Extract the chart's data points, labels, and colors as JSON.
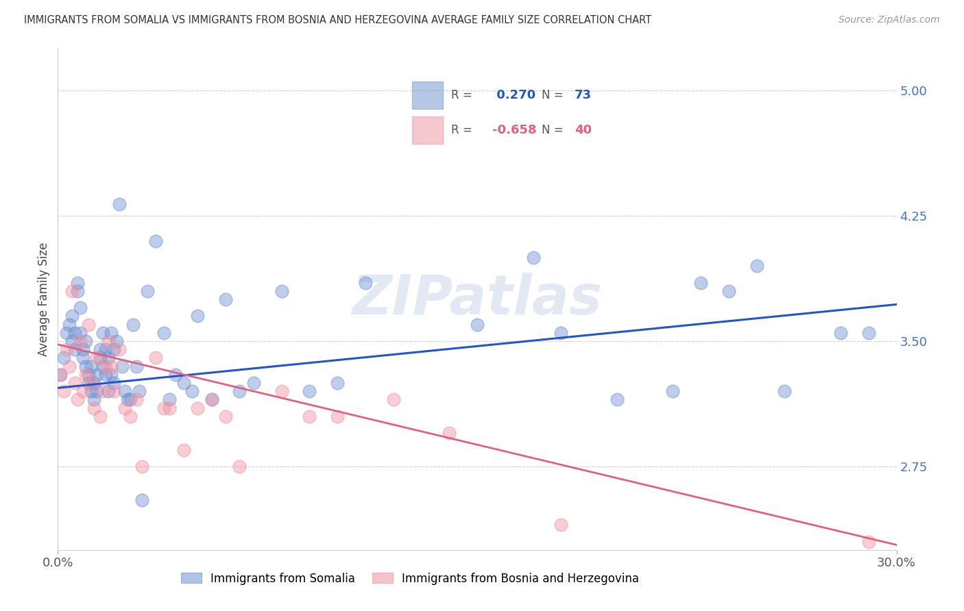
{
  "title": "IMMIGRANTS FROM SOMALIA VS IMMIGRANTS FROM BOSNIA AND HERZEGOVINA AVERAGE FAMILY SIZE CORRELATION CHART",
  "source": "Source: ZipAtlas.com",
  "ylabel": "Average Family Size",
  "yticks": [
    2.75,
    3.5,
    4.25,
    5.0
  ],
  "xlim": [
    0.0,
    0.3
  ],
  "ylim": [
    2.25,
    5.25
  ],
  "y_axis_color": "#4472c4",
  "background_color": "#ffffff",
  "grid_color": "#cccccc",
  "somalia_color": "#7090d0",
  "bosnia_color": "#f090a0",
  "somalia_line_color": "#2255cc",
  "bosnia_line_color": "#e06080",
  "legend_R1": " 0.270",
  "legend_N1": "73",
  "legend_R2": "-0.658",
  "legend_N2": "40",
  "somalia_label": "Immigrants from Somalia",
  "bosnia_label": "Immigrants from Bosnia and Herzegovina",
  "somalia_points_x": [
    0.001,
    0.002,
    0.003,
    0.004,
    0.005,
    0.005,
    0.006,
    0.006,
    0.007,
    0.007,
    0.008,
    0.008,
    0.009,
    0.009,
    0.01,
    0.01,
    0.011,
    0.011,
    0.012,
    0.012,
    0.013,
    0.013,
    0.014,
    0.014,
    0.015,
    0.015,
    0.016,
    0.016,
    0.017,
    0.017,
    0.018,
    0.018,
    0.019,
    0.019,
    0.02,
    0.02,
    0.021,
    0.022,
    0.023,
    0.024,
    0.025,
    0.026,
    0.027,
    0.028,
    0.029,
    0.03,
    0.032,
    0.035,
    0.038,
    0.04,
    0.042,
    0.045,
    0.048,
    0.05,
    0.055,
    0.06,
    0.065,
    0.07,
    0.08,
    0.09,
    0.1,
    0.11,
    0.15,
    0.17,
    0.18,
    0.2,
    0.22,
    0.23,
    0.24,
    0.25,
    0.26,
    0.28,
    0.29
  ],
  "somalia_points_y": [
    3.3,
    3.4,
    3.55,
    3.6,
    3.5,
    3.65,
    3.45,
    3.55,
    3.8,
    3.85,
    3.7,
    3.55,
    3.4,
    3.45,
    3.35,
    3.5,
    3.25,
    3.3,
    3.2,
    3.35,
    3.15,
    3.25,
    3.2,
    3.3,
    3.4,
    3.45,
    3.35,
    3.55,
    3.3,
    3.45,
    3.2,
    3.4,
    3.3,
    3.55,
    3.25,
    3.45,
    3.5,
    4.32,
    3.35,
    3.2,
    3.15,
    3.15,
    3.6,
    3.35,
    3.2,
    2.55,
    3.8,
    4.1,
    3.55,
    3.15,
    3.3,
    3.25,
    3.2,
    3.65,
    3.15,
    3.75,
    3.2,
    3.25,
    3.8,
    3.2,
    3.25,
    3.85,
    3.6,
    4.0,
    3.55,
    3.15,
    3.2,
    3.85,
    3.8,
    3.95,
    3.2,
    3.55,
    3.55
  ],
  "bosnia_points_x": [
    0.001,
    0.002,
    0.003,
    0.004,
    0.005,
    0.006,
    0.007,
    0.008,
    0.009,
    0.01,
    0.011,
    0.012,
    0.013,
    0.014,
    0.015,
    0.016,
    0.017,
    0.018,
    0.019,
    0.02,
    0.022,
    0.024,
    0.026,
    0.028,
    0.03,
    0.035,
    0.038,
    0.04,
    0.045,
    0.05,
    0.055,
    0.06,
    0.065,
    0.08,
    0.09,
    0.1,
    0.12,
    0.14,
    0.18,
    0.29
  ],
  "bosnia_points_y": [
    3.3,
    3.2,
    3.45,
    3.35,
    3.8,
    3.25,
    3.15,
    3.5,
    3.2,
    3.3,
    3.6,
    3.25,
    3.1,
    3.4,
    3.05,
    3.2,
    3.35,
    3.5,
    3.35,
    3.2,
    3.45,
    3.1,
    3.05,
    3.15,
    2.75,
    3.4,
    3.1,
    3.1,
    2.85,
    3.1,
    3.15,
    3.05,
    2.75,
    3.2,
    3.05,
    3.05,
    3.15,
    2.95,
    2.4,
    2.3
  ],
  "somalia_line_x": [
    0.0,
    0.3
  ],
  "somalia_line_y": [
    3.22,
    3.72
  ],
  "bosnia_line_x": [
    0.0,
    0.3
  ],
  "bosnia_line_y": [
    3.48,
    2.28
  ],
  "watermark": "ZIPatlas",
  "watermark_color": "#a0b8d8"
}
